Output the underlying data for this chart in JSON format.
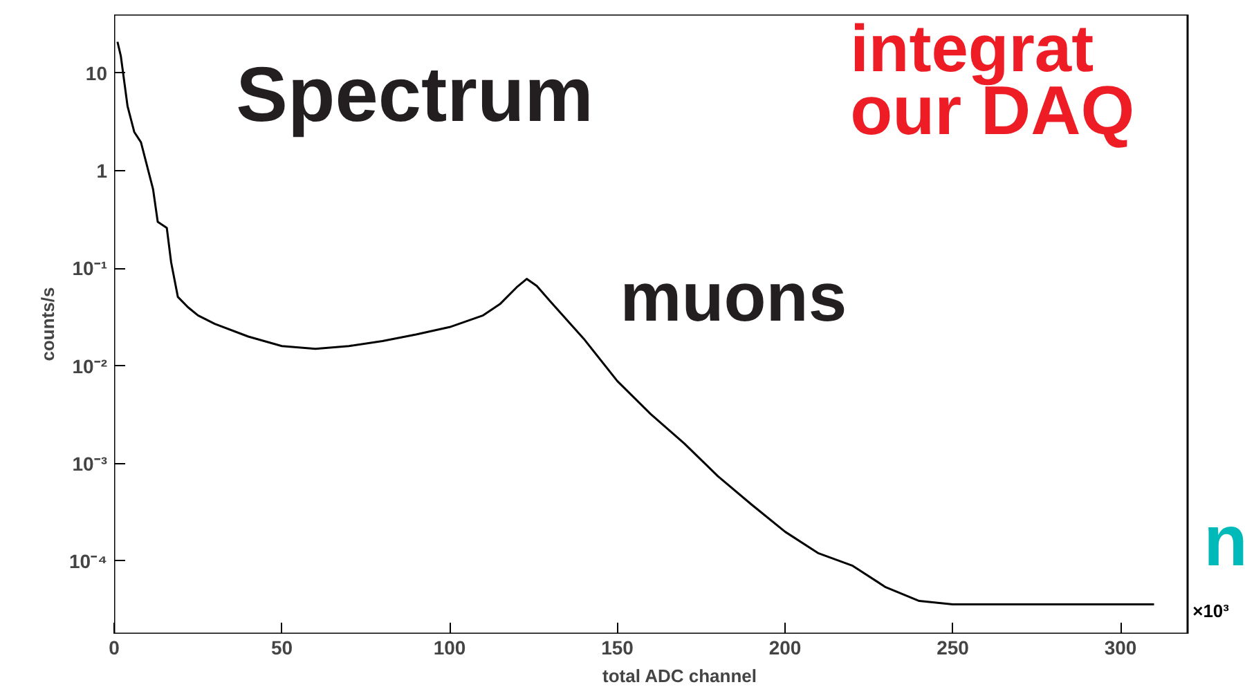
{
  "chart_data": {
    "type": "line",
    "xlabel": "total ADC channel",
    "ylabel": "counts/s",
    "annotations": [
      "Spectrum",
      "muons",
      "integrat",
      "our DAQ",
      "n",
      "×10³"
    ],
    "x": [
      1,
      2,
      4,
      6,
      8,
      11.6,
      13,
      15.7,
      17,
      19,
      22,
      25,
      30,
      40,
      50,
      60,
      70,
      80,
      90,
      100,
      110,
      115,
      120,
      123,
      126,
      130,
      140,
      150,
      160,
      170,
      180,
      190,
      200,
      210,
      220,
      230,
      240,
      250,
      260,
      270,
      280,
      290,
      300,
      310
    ],
    "values": [
      21,
      15,
      4.6,
      2.5,
      1.96,
      0.65,
      0.3,
      0.26,
      0.115,
      0.051,
      0.04,
      0.033,
      0.027,
      0.02,
      0.016,
      0.015,
      0.016,
      0.018,
      0.021,
      0.025,
      0.033,
      0.043,
      0.064,
      0.078,
      0.066,
      0.046,
      0.019,
      0.007,
      0.0032,
      0.0016,
      0.00074,
      0.00038,
      0.0002,
      0.00012,
      9e-05,
      5.4e-05,
      3.9e-05,
      3.6e-05,
      3.6e-05,
      3.6e-05,
      3.6e-05,
      3.6e-05,
      3.6e-05,
      3.6e-05
    ],
    "color": "#000000",
    "log": "y",
    "grid": false,
    "marker": "none",
    "line_style": "solid",
    "xlim": [
      0,
      320
    ],
    "ylim": [
      1.8e-05,
      40
    ],
    "xticks": [
      0,
      50,
      100,
      150,
      200,
      250,
      300
    ],
    "yticks": [
      {
        "value": 0.0001,
        "label": "10⁻⁴"
      },
      {
        "value": 0.001,
        "label": "10⁻³"
      },
      {
        "value": 0.01,
        "label": "10⁻²"
      },
      {
        "value": 0.1,
        "label": "10⁻¹"
      },
      1,
      10
    ]
  }
}
